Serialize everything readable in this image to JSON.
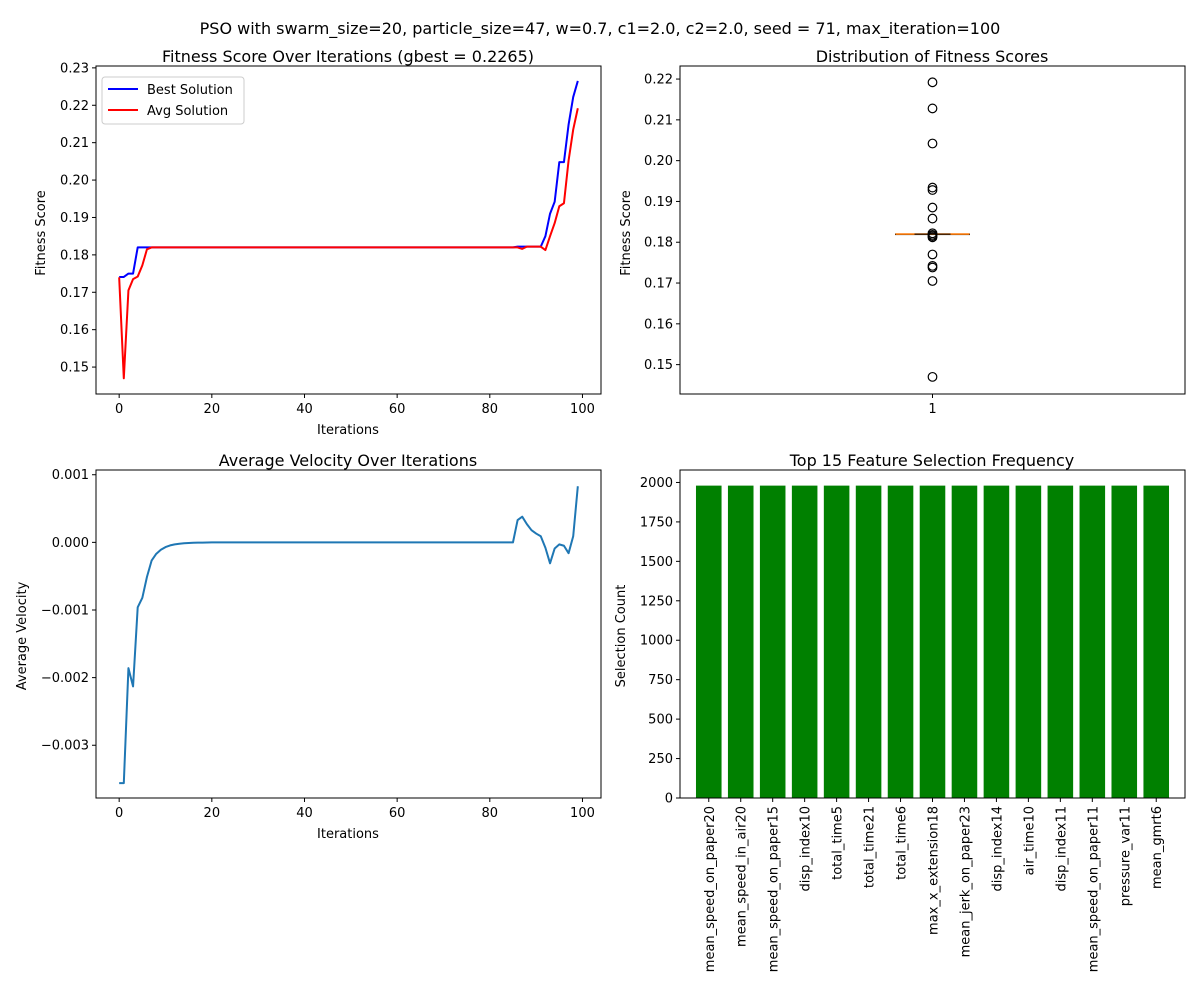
{
  "figure": {
    "suptitle": "PSO with swarm_size=20, particle_size=47, w=0.7, c1=2.0, c2=2.0, seed = 71, max_iteration=100"
  },
  "chart_data": [
    {
      "id": "fitness",
      "type": "line",
      "title": "Fitness Score Over Iterations (gbest = 0.2265)",
      "xlabel": "Iterations",
      "ylabel": "Fitness Score",
      "xlim": [
        -5,
        104
      ],
      "ylim": [
        0.1428,
        0.2305
      ],
      "xticks": [
        0,
        20,
        40,
        60,
        80,
        100
      ],
      "yticks": [
        0.15,
        0.16,
        0.17,
        0.18,
        0.19,
        0.2,
        0.21,
        0.22,
        0.23
      ],
      "ytick_labels": [
        "0.15",
        "0.16",
        "0.17",
        "0.18",
        "0.19",
        "0.20",
        "0.21",
        "0.22",
        "0.23"
      ],
      "grid": false,
      "legend": "upper-left",
      "series": [
        {
          "name": "Best Solution",
          "color": "#0000ff",
          "x": [
            0,
            1,
            2,
            3,
            4,
            5,
            6,
            7,
            8,
            9,
            10,
            15,
            20,
            30,
            40,
            50,
            60,
            70,
            80,
            84,
            85,
            86,
            87,
            88,
            89,
            90,
            91,
            92,
            93,
            94,
            95,
            96,
            97,
            98,
            99
          ],
          "y": [
            0.1741,
            0.1741,
            0.175,
            0.175,
            0.182,
            0.182,
            0.182,
            0.182,
            0.182,
            0.182,
            0.182,
            0.182,
            0.182,
            0.182,
            0.182,
            0.182,
            0.182,
            0.182,
            0.182,
            0.182,
            0.182,
            0.1822,
            0.1822,
            0.1822,
            0.1822,
            0.1822,
            0.1822,
            0.185,
            0.191,
            0.1942,
            0.2048,
            0.2048,
            0.2148,
            0.2222,
            0.2265
          ]
        },
        {
          "name": "Avg Solution",
          "color": "#ff0000",
          "x": [
            0,
            1,
            2,
            3,
            4,
            5,
            6,
            7,
            8,
            9,
            10,
            15,
            20,
            30,
            40,
            50,
            60,
            70,
            80,
            84,
            85,
            86,
            87,
            88,
            89,
            90,
            91,
            92,
            93,
            94,
            95,
            96,
            97,
            98,
            99
          ],
          "y": [
            0.174,
            0.147,
            0.1705,
            0.1735,
            0.1742,
            0.1772,
            0.1815,
            0.182,
            0.182,
            0.182,
            0.182,
            0.182,
            0.182,
            0.182,
            0.182,
            0.182,
            0.182,
            0.182,
            0.182,
            0.182,
            0.182,
            0.182,
            0.1816,
            0.1822,
            0.1822,
            0.1822,
            0.1822,
            0.1813,
            0.185,
            0.1885,
            0.193,
            0.1938,
            0.2052,
            0.2135,
            0.2192
          ]
        }
      ]
    },
    {
      "id": "distribution",
      "type": "box",
      "title": "Distribution of Fitness Scores",
      "xlabel": "",
      "ylabel": "Fitness Score",
      "xticks": [
        "1"
      ],
      "ylim": [
        0.1428,
        0.2232
      ],
      "yticks": [
        0.15,
        0.16,
        0.17,
        0.18,
        0.19,
        0.2,
        0.21,
        0.22
      ],
      "ytick_labels": [
        "0.15",
        "0.16",
        "0.17",
        "0.18",
        "0.19",
        "0.20",
        "0.21",
        "0.22"
      ],
      "grid": false,
      "median": 0.182,
      "q1": 0.182,
      "q3": 0.182,
      "whisker_low": 0.182,
      "whisker_high": 0.182,
      "median_color": "#ff7f0e",
      "outliers": [
        0.2192,
        0.2128,
        0.2042,
        0.1934,
        0.1928,
        0.1885,
        0.1858,
        0.1822,
        0.1818,
        0.1815,
        0.1812,
        0.177,
        0.1742,
        0.1738,
        0.1705,
        0.147
      ]
    },
    {
      "id": "velocity",
      "type": "line",
      "title": "Average Velocity Over Iterations",
      "xlabel": "Iterations",
      "ylabel": "Average Velocity",
      "xlim": [
        -5,
        104
      ],
      "ylim": [
        -0.00378,
        0.00107
      ],
      "xticks": [
        0,
        20,
        40,
        60,
        80,
        100
      ],
      "yticks": [
        -0.003,
        -0.002,
        -0.001,
        0.0,
        0.001
      ],
      "ytick_labels": [
        "−0.003",
        "−0.002",
        "−0.001",
        "0.000",
        "0.001"
      ],
      "grid": false,
      "series": [
        {
          "color": "#1f77b4",
          "x": [
            0,
            1,
            2,
            3,
            4,
            5,
            6,
            7,
            8,
            9,
            10,
            11,
            12,
            13,
            14,
            15,
            16,
            17,
            18,
            20,
            22,
            25,
            30,
            40,
            50,
            60,
            70,
            80,
            84,
            85,
            86,
            87,
            88,
            89,
            90,
            91,
            92,
            93,
            94,
            95,
            96,
            97,
            98,
            99
          ],
          "y": [
            -0.00356,
            -0.00356,
            -0.00186,
            -0.00213,
            -0.00096,
            -0.00082,
            -0.00051,
            -0.00027,
            -0.00017,
            -0.00011,
            -7e-05,
            -4.5e-05,
            -3e-05,
            -2e-05,
            -1.3e-05,
            -9e-06,
            -6e-06,
            -4e-06,
            -3e-06,
            -1e-06,
            0,
            0,
            0,
            0,
            0,
            0,
            0,
            0,
            0,
            0,
            0.00033,
            0.00038,
            0.00027,
            0.00018,
            0.00013,
            9e-05,
            -8e-05,
            -0.00031,
            -9e-05,
            -3e-05,
            -5e-05,
            -0.00016,
            9e-05,
            0.00083
          ]
        }
      ]
    },
    {
      "id": "features",
      "type": "bar",
      "title": "Top 15 Feature Selection Frequency",
      "xlabel": "",
      "ylabel": "Selection Count",
      "ylim": [
        0,
        2079
      ],
      "yticks": [
        0,
        250,
        500,
        750,
        1000,
        1250,
        1500,
        1750,
        2000
      ],
      "ytick_labels": [
        "0",
        "250",
        "500",
        "750",
        "1000",
        "1250",
        "1500",
        "1750",
        "2000"
      ],
      "grid": false,
      "color": "#008000",
      "categories": [
        "mean_speed_on_paper20",
        "mean_speed_in_air20",
        "mean_speed_on_paper15",
        "disp_index10",
        "total_time5",
        "total_time21",
        "total_time6",
        "max_x_extension18",
        "mean_jerk_on_paper23",
        "disp_index14",
        "air_time10",
        "disp_index11",
        "mean_speed_on_paper11",
        "pressure_var11",
        "mean_gmrt6"
      ],
      "values": [
        1980,
        1980,
        1980,
        1980,
        1980,
        1980,
        1980,
        1980,
        1980,
        1980,
        1980,
        1980,
        1980,
        1980,
        1980
      ]
    }
  ]
}
